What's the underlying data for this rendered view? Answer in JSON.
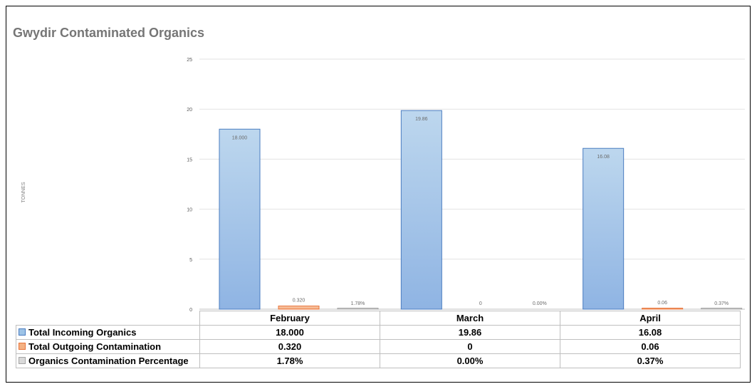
{
  "chart_data": {
    "type": "bar",
    "title": "Gwydir Contaminated Organics",
    "ylabel": "TONNES",
    "xlabel": "",
    "ylim": [
      0,
      25
    ],
    "yticks": [
      0,
      5,
      10,
      15,
      20,
      25
    ],
    "grid": true,
    "legend": "data table below chart",
    "categories": [
      "February",
      "March",
      "April"
    ],
    "series": [
      {
        "name": "Total Incoming Organics",
        "values": [
          18.0,
          19.86,
          16.08
        ],
        "labels": [
          "18.000",
          "19.86",
          "16.08"
        ],
        "color": "#9dc3e6",
        "edge": "#4a7cc0"
      },
      {
        "name": "Total Outgoing Contamination",
        "values": [
          0.32,
          0,
          0.06
        ],
        "labels": [
          "0.320",
          "0",
          "0.06"
        ],
        "color": "#f4b183",
        "edge": "#e8743b"
      },
      {
        "name": "Organics Contamination Percentage",
        "values": [
          0.0178,
          0.0,
          0.0037
        ],
        "labels": [
          "1.78%",
          "0.00%",
          "0.37%"
        ],
        "color": "#d9d9d9",
        "edge": "#a5a5a5"
      }
    ]
  }
}
